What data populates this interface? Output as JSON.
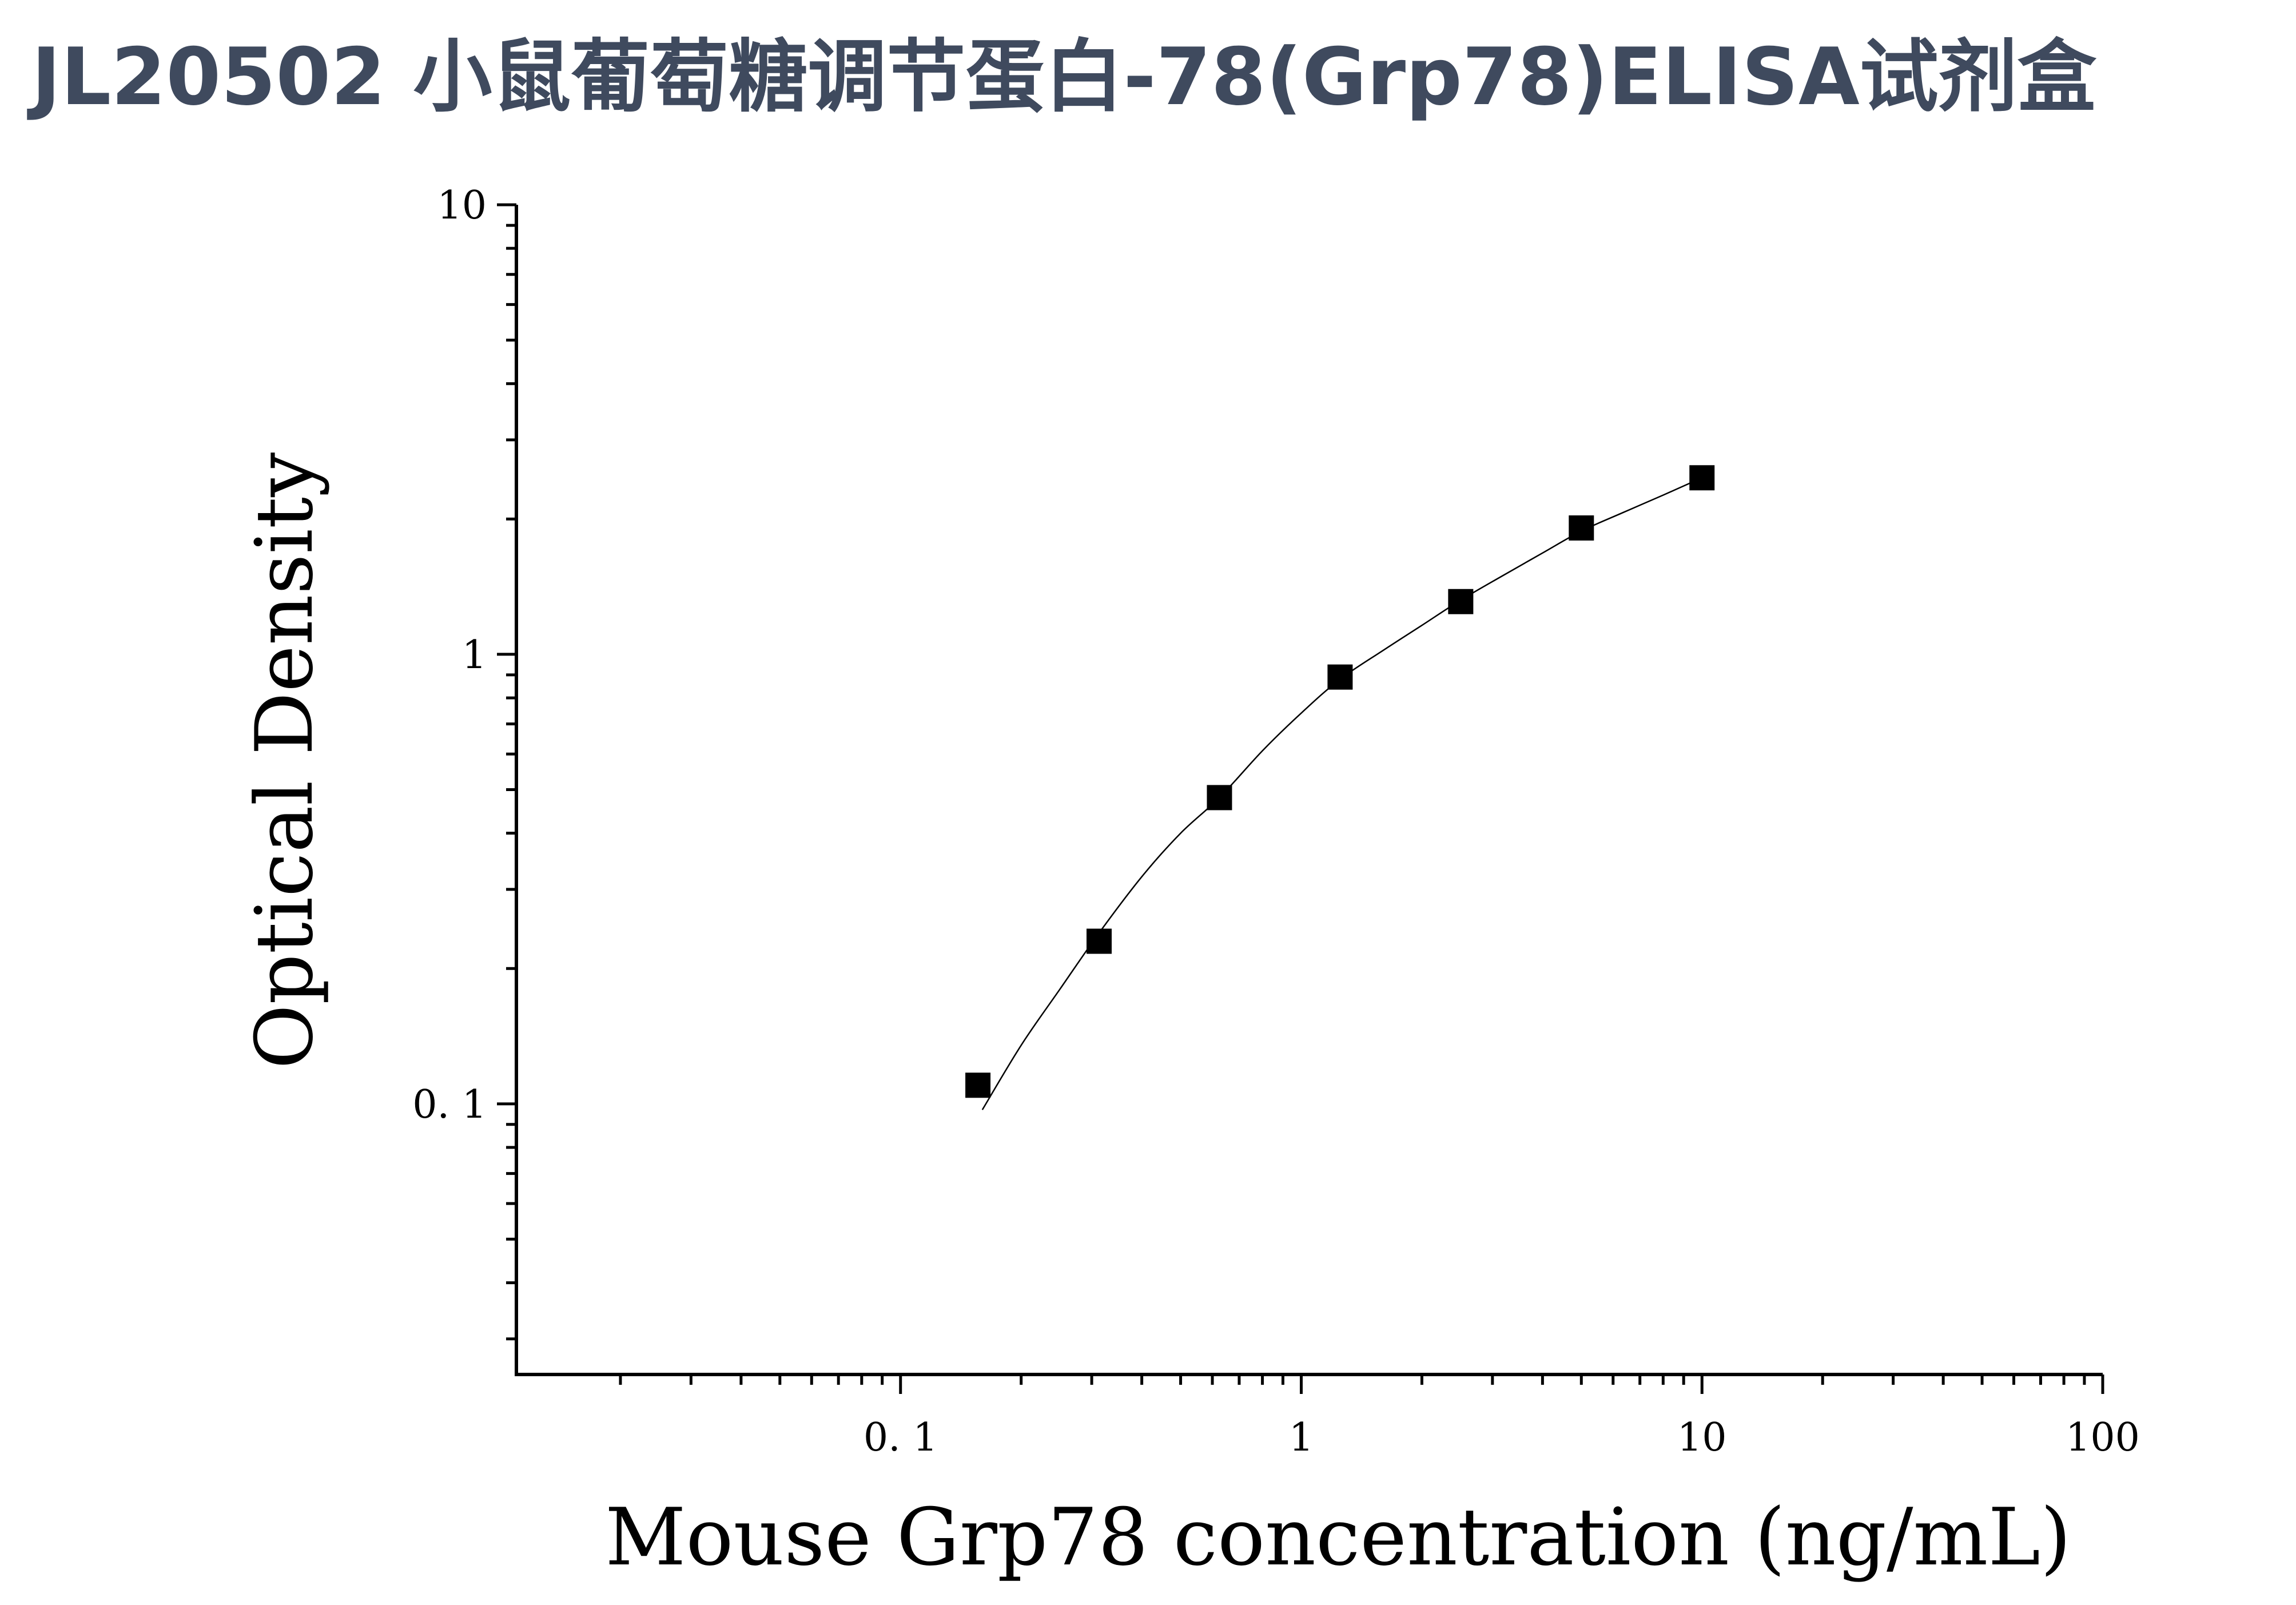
{
  "page": {
    "title": "JL20502 小鼠葡萄糖调节蛋白-78(Grp78)ELISA试剂盒",
    "title_color": "#3f4a5e"
  },
  "chart_data": {
    "type": "scatter",
    "title": "JL20502 小鼠葡萄糖调节蛋白-78(Grp78)ELISA试剂盒",
    "xlabel": "Mouse Grp78 concentration (ng/mL)",
    "ylabel": "Optical Density",
    "x_scale": "log",
    "y_scale": "log",
    "xlim": [
      0.011,
      100
    ],
    "ylim": [
      0.025,
      10
    ],
    "x_ticks": [
      {
        "value": 0.1,
        "label": "0. 1"
      },
      {
        "value": 1,
        "label": "1"
      },
      {
        "value": 10,
        "label": "10"
      },
      {
        "value": 100,
        "label": "100"
      }
    ],
    "y_ticks": [
      {
        "value": 0.1,
        "label": "0. 1"
      },
      {
        "value": 1,
        "label": "1"
      },
      {
        "value": 10,
        "label": "10"
      }
    ],
    "grid": false,
    "legend": false,
    "series": [
      {
        "marker": "square",
        "color": "#000000",
        "x": [
          0.156,
          0.313,
          0.625,
          1.25,
          2.5,
          5,
          10
        ],
        "y": [
          0.11,
          0.23,
          0.48,
          0.89,
          1.31,
          1.91,
          2.47
        ]
      }
    ],
    "fit_curve": {
      "color": "#000000",
      "x_range": [
        0.16,
        10
      ],
      "points": [
        {
          "x": 0.16,
          "y": 0.097
        },
        {
          "x": 0.2,
          "y": 0.135
        },
        {
          "x": 0.25,
          "y": 0.18
        },
        {
          "x": 0.313,
          "y": 0.24
        },
        {
          "x": 0.4,
          "y": 0.32
        },
        {
          "x": 0.5,
          "y": 0.4
        },
        {
          "x": 0.625,
          "y": 0.48
        },
        {
          "x": 0.8,
          "y": 0.61
        },
        {
          "x": 1.0,
          "y": 0.74
        },
        {
          "x": 1.25,
          "y": 0.88
        },
        {
          "x": 1.6,
          "y": 1.02
        },
        {
          "x": 2.0,
          "y": 1.16
        },
        {
          "x": 2.5,
          "y": 1.32
        },
        {
          "x": 3.2,
          "y": 1.5
        },
        {
          "x": 4.0,
          "y": 1.68
        },
        {
          "x": 5.0,
          "y": 1.88
        },
        {
          "x": 6.3,
          "y": 2.06
        },
        {
          "x": 8.0,
          "y": 2.26
        },
        {
          "x": 10.0,
          "y": 2.47
        }
      ]
    }
  }
}
